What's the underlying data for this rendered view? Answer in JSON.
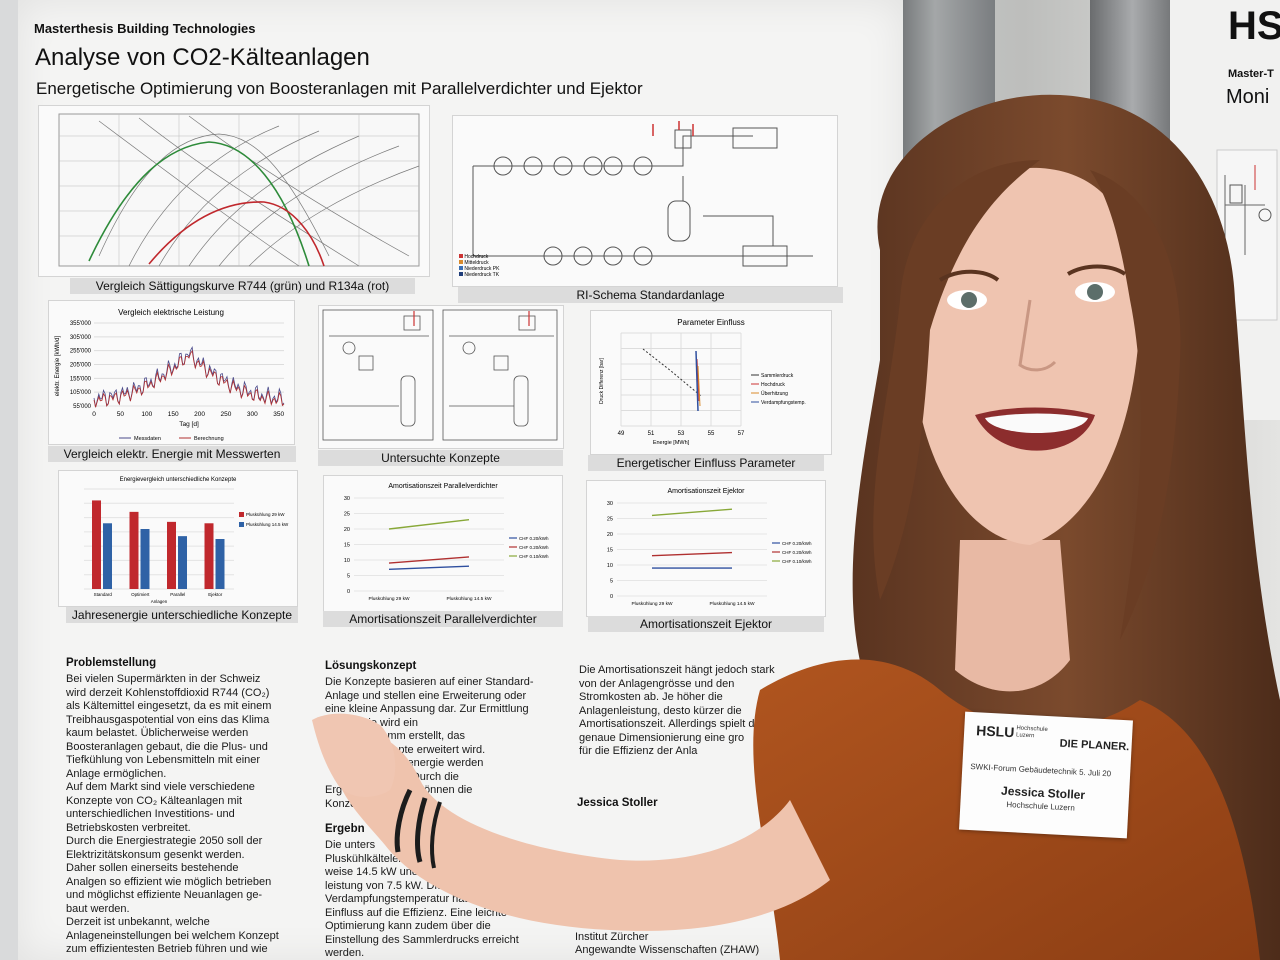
{
  "poster": {
    "program": "Masterthesis Building Technologies",
    "title": "Analyse von CO2-Kälteanlagen",
    "subtitle": "Energetische Optimierung von Boosteranlagen mit Parallelverdichter und Ejektor",
    "captions": {
      "saturation": "Vergleich Sättigungskurve R744 (grün) und R134a (rot)",
      "ri_schema": "RI-Schema Standardanlage",
      "elec_compare": "Vergleich elektr. Energie mit Messwerten",
      "concepts": "Untersuchte Konzepte",
      "parameter": "Energetischer Einfluss Parameter",
      "annual": "Jahresenergie unterschiedliche Konzepte",
      "amort_parallel": "Amortisationszeit Parallelverdichter",
      "amort_ejector": "Amortisationszeit Ejektor"
    },
    "legend_ri": [
      "Hochdruck",
      "Mitteldruck",
      "Niederdruck PK",
      "Niederdruck TK"
    ],
    "sections": {
      "problem_head": "Problemstellung",
      "problem_text": "Bei vielen Supermärkten in der Schweiz\nwird derzeit Kohlenstoffdioxid R744 (CO₂)\nals Kältemittel eingesetzt, da es mit einem\nTreibhausgaspotential von eins das Klima\nkaum belastet. Üblicherweise werden\nBoosteranlagen gebaut, die die Plus- und\nTiefkühlung von Lebensmitteln mit einer\nAnlage ermöglichen.\nAuf dem Markt sind viele verschiedene\nKonzepte von CO₂ Kälteanlagen mit\nunterschiedlichen Investitions- und\nBetriebskosten verbreitet.\nDurch die Energiestrategie 2050 soll der\nElektrizitätskonsum gesenkt werden.\nDaher sollen einerseits bestehende\nAnalgen so effizient wie möglich betrieben\nund möglichst effiziente Neuanlagen ge-\nbaut werden.\nDerzeit ist unbekannt, welche\nAnlageneinstellungen bei welchem Konzept\nzum effizientesten Betrieb führen und wie",
      "solution_head": "Lösungskonzept",
      "solution_text": "Die Konzepte basieren auf einer Standard-\nAnlage und stellen eine Erweiterung oder\neine kleine Anpassung dar. Zur Ermittlung\n         ergie wird ein\n          programm erstellt, das\n          le Konzepte erweitert wird.\n          der Jahresenergie werden\n          verglichen. Durch die\nErg       resenergie können die\nKonze         den.",
      "results_head": "Ergebn",
      "results_text": "Die unters\nPluskühlkälteleist\nweise 14.5 kW und eine T\nleistung von 7.5 kW. Die\nVerdampfungstemperatur hat den gross\nEinfluss auf die Effizienz. Eine leichte\nOptimierung kann zudem über die\nEinstellung des Sammlerdrucks erreicht\nwerden.",
      "col3_text": "Die Amortisationszeit hängt jedoch stark\nvon der Anlagengrösse und den\nStromkosten ab. Je höher die\nAnlagenleistung, desto kürzer die\nAmortisationszeit. Allerdings spielt d\ngenaue Dimensionierung eine gro\nfür die Effizienz der Anla",
      "author": "Jessica Stoller",
      "inst_text": "Verb\nInstitut Zürcher\nAngewandte Wissenschaften (ZHAW)"
    }
  },
  "right_poster": {
    "logo": "HS",
    "line1": "Master-T",
    "line2": "Moni"
  },
  "badge": {
    "hslu": "HSLU",
    "hslu_sub": "Hochschule\nLuzern",
    "planer": "DIE PLANER.",
    "event": "SWKI-Forum Gebäudetechnik 5. Juli 20",
    "name": "Jessica Stoller",
    "school": "Hochschule Luzern"
  },
  "chart_data": [
    {
      "type": "line",
      "title": "Vergleich elektrische Leistung",
      "xlabel": "Tag [d]",
      "ylabel": "elektr. Energie [kWh/d]",
      "x_ticks": [
        0,
        50,
        100,
        150,
        200,
        250,
        300,
        350
      ],
      "y_ticks": [
        "355'000",
        "305'000",
        "255'000",
        "205'000",
        "155'000",
        "105'000",
        "55'000"
      ],
      "legend": [
        "Messdaten",
        "Berechnung"
      ],
      "colors": [
        "#4a4a8a",
        "#b03030"
      ]
    },
    {
      "type": "scatter",
      "title": "Parameter Einfluss",
      "xlabel": "Energie [MWh]",
      "ylabel": "Druck Differenz [bar]",
      "x_ticks": [
        49,
        51,
        53,
        55,
        57
      ],
      "legend": [
        "Sammlerdruck",
        "Hochdruck",
        "Überhitzung",
        "Verdampfungstemp."
      ]
    },
    {
      "type": "bar",
      "title": "Energievergleich unterschiedliche Konzepte",
      "categories": [
        "Standard",
        "Optimiert",
        "Parallel",
        "Ejektor"
      ],
      "xlabel": "Anlagen",
      "series": [
        {
          "name": "Pluskühlung 29 kW",
          "values": [
            62,
            54,
            47,
            46
          ],
          "color": "#c0282d"
        },
        {
          "name": "Pluskühlung 14.5 kW",
          "values": [
            46,
            42,
            37,
            35
          ],
          "color": "#2f62a6"
        }
      ]
    },
    {
      "type": "line",
      "title": "Amortisationszeit Parallelverdichter",
      "categories": [
        "Pluskühlung 29 kW",
        "Pluskühlung 14.5 kW"
      ],
      "y_ticks": [
        0,
        5,
        10,
        15,
        20,
        25,
        30
      ],
      "series": [
        {
          "name": "CHF 0.20/kWh",
          "values": [
            7,
            8
          ],
          "color": "#2f4f9f"
        },
        {
          "name": "CHF 0.20/kWh",
          "values": [
            9,
            11
          ],
          "color": "#b03030"
        },
        {
          "name": "CHF 0.10/kWh",
          "values": [
            20,
            23
          ],
          "color": "#88a838"
        }
      ]
    },
    {
      "type": "line",
      "title": "Amortisationszeit Ejektor",
      "categories": [
        "Pluskühlung 29 kW",
        "Pluskühlung 14.5 kW"
      ],
      "y_ticks": [
        0,
        5,
        10,
        15,
        20,
        25,
        30
      ],
      "series": [
        {
          "name": "CHF 0.20/kWh",
          "values": [
            9,
            9
          ],
          "color": "#2f4f9f"
        },
        {
          "name": "CHF 0.20/kWh",
          "values": [
            13,
            14
          ],
          "color": "#b03030"
        },
        {
          "name": "CHF 0.10/kWh",
          "values": [
            26,
            28
          ],
          "color": "#88a838"
        }
      ]
    }
  ]
}
